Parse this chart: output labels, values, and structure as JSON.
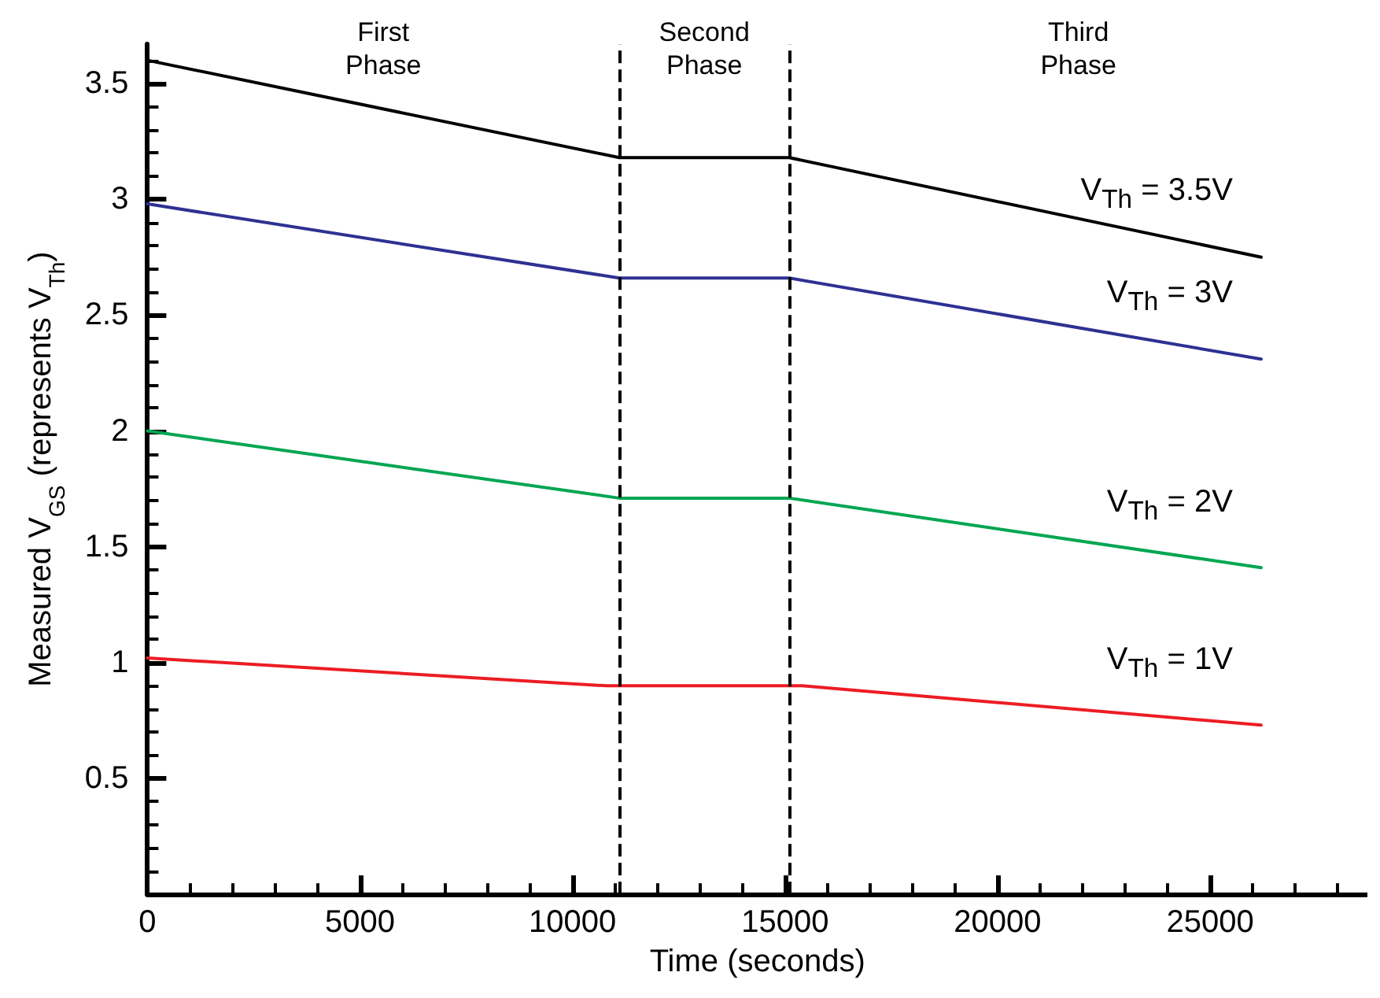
{
  "chart_data": {
    "type": "line",
    "xlabel": "Time (seconds)",
    "ylabel": "Measured V$_{GS}$ (represents V$_{Th}$)",
    "x": [
      0,
      11100,
      15100,
      26200
    ],
    "series": [
      {
        "name": "V$_{Th}$ = 3.5V",
        "color": "#000000",
        "values": [
          3.6,
          3.18,
          3.18,
          2.75
        ]
      },
      {
        "name": "V$_{Th}$ = 3V",
        "color": "#2e3192",
        "values": [
          2.98,
          2.66,
          2.66,
          2.31
        ]
      },
      {
        "name": "V$_{Th}$ = 2V",
        "color": "#00a651",
        "values": [
          2.0,
          1.71,
          1.71,
          1.41
        ]
      },
      {
        "name": "V$_{Th}$ = 1V",
        "color": "#ed1c24",
        "x": [
          0,
          10800,
          15400,
          26200
        ],
        "values": [
          1.02,
          0.9,
          0.9,
          0.73
        ]
      }
    ],
    "xlim": [
      0,
      28700
    ],
    "ylim": [
      0,
      3.67
    ],
    "xticks": [
      0,
      5000,
      10000,
      15000,
      20000,
      25000
    ],
    "yticks": [
      0.5,
      1,
      1.5,
      2,
      2.5,
      3,
      3.5
    ],
    "ref_lines": [
      {
        "axis": "x",
        "value": 11100,
        "color": "#000000",
        "line_style": "dashed"
      },
      {
        "axis": "x",
        "value": 15100,
        "color": "#000000",
        "line_style": "dashed"
      }
    ],
    "annotations": [
      "First\nPhase",
      "Second\nPhase",
      "Third\nPhase"
    ],
    "grid": false,
    "marker": "none",
    "line_style": "solid"
  }
}
